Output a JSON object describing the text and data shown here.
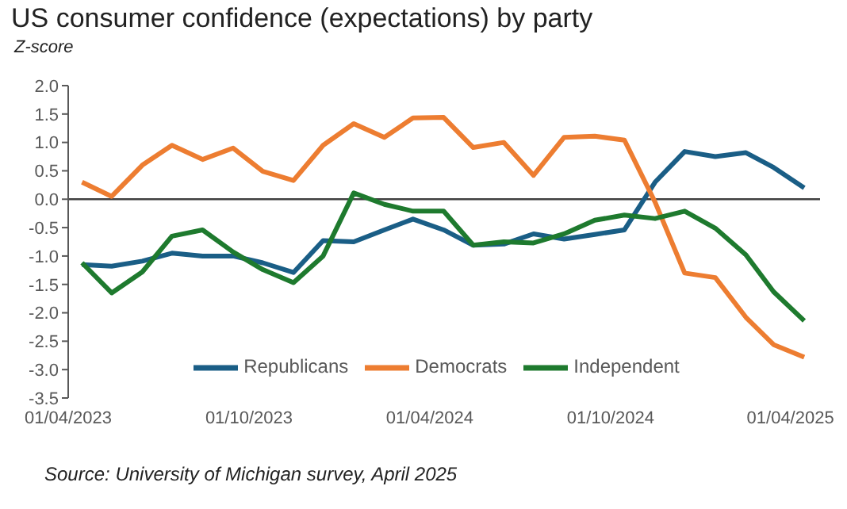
{
  "chart_data": {
    "type": "line",
    "title": "US consumer confidence (expectations) by party",
    "ylabel": "Z-score",
    "x": [
      "2023-04-15",
      "2023-05-15",
      "2023-06-15",
      "2023-07-15",
      "2023-08-15",
      "2023-09-15",
      "2023-10-15",
      "2023-11-15",
      "2023-12-15",
      "2024-01-15",
      "2024-02-15",
      "2024-03-15",
      "2024-04-15",
      "2024-05-15",
      "2024-06-15",
      "2024-07-15",
      "2024-08-15",
      "2024-09-15",
      "2024-10-15",
      "2024-11-15",
      "2024-12-15",
      "2025-01-15",
      "2025-02-15",
      "2025-03-15",
      "2025-04-15"
    ],
    "series": [
      {
        "name": "Republicans",
        "color": "#1a5e86",
        "values": [
          -1.15,
          -1.18,
          -1.09,
          -0.95,
          -1.0,
          -1.0,
          -1.12,
          -1.29,
          -0.73,
          -0.75,
          -0.54,
          -0.35,
          -0.54,
          -0.81,
          -0.79,
          -0.61,
          -0.7,
          -0.62,
          -0.54,
          0.3,
          0.84,
          0.75,
          0.82,
          0.56,
          0.2
        ]
      },
      {
        "name": "Democrats",
        "color": "#ed7d31",
        "values": [
          0.3,
          0.05,
          0.6,
          0.95,
          0.7,
          0.9,
          0.49,
          0.33,
          0.95,
          1.33,
          1.09,
          1.43,
          1.44,
          0.91,
          1.0,
          0.42,
          1.09,
          1.11,
          1.04,
          -0.05,
          -1.3,
          -1.38,
          -2.08,
          -2.56,
          -2.78
        ]
      },
      {
        "name": "Independent",
        "color": "#1e7a2e",
        "values": [
          -1.12,
          -1.65,
          -1.28,
          -0.65,
          -0.54,
          -0.93,
          -1.24,
          -1.47,
          -1.0,
          0.11,
          -0.09,
          -0.21,
          -0.21,
          -0.81,
          -0.75,
          -0.77,
          -0.61,
          -0.37,
          -0.28,
          -0.34,
          -0.21,
          -0.51,
          -0.98,
          -1.63,
          -2.14
        ]
      }
    ],
    "xlim": [
      "2023-04-01",
      "2025-05-01"
    ],
    "xticks": [
      {
        "value": "2023-04-01",
        "label": "01/04/2023"
      },
      {
        "value": "2023-10-01",
        "label": "01/10/2023"
      },
      {
        "value": "2024-04-01",
        "label": "01/04/2024"
      },
      {
        "value": "2024-10-01",
        "label": "01/10/2024"
      },
      {
        "value": "2025-04-01",
        "label": "01/04/2025"
      }
    ],
    "ylim": [
      -3.5,
      2
    ],
    "yticks": [
      -3.5,
      {
        "value": -3,
        "label": "-3.0"
      },
      -2.5,
      {
        "value": -2,
        "label": "-2.0"
      },
      -1.5,
      {
        "value": -1,
        "label": "-1.0"
      },
      -0.5,
      {
        "value": 0,
        "label": "0.0"
      },
      0.5,
      {
        "value": 1,
        "label": "1.0"
      },
      1.5,
      {
        "value": 2,
        "label": "2.0"
      }
    ],
    "ref_lines": [
      {
        "axis": "y",
        "value": 0,
        "color": "#404040"
      }
    ],
    "grid": false,
    "legend": "bottom",
    "marker": "none",
    "line_style": "solid",
    "annotations": [
      "Source: University of Michigan survey, April 2025"
    ]
  }
}
